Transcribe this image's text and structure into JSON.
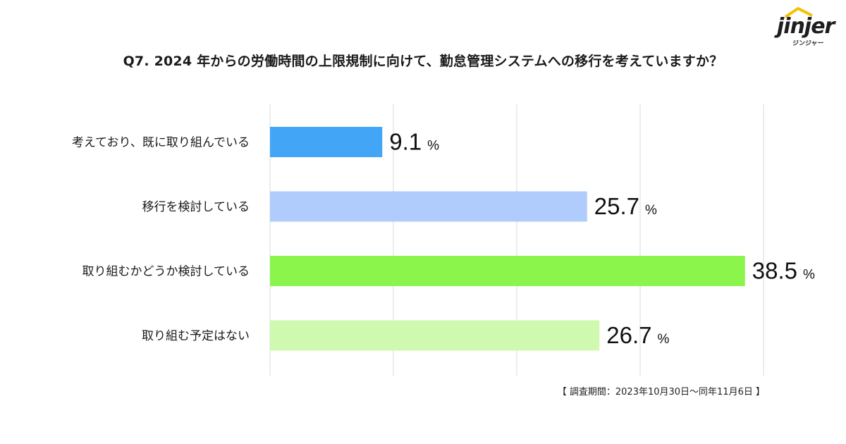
{
  "title": "Q7. 2024 年からの労働時間の上限規制に向けて、勤怠管理システムへの移行を考えていますか？",
  "logo": {
    "word": "jinjer",
    "sub": "ジンジャー"
  },
  "note": "【 調査期間：2023年10月30日～同年11月6日 】",
  "chart_data": {
    "type": "bar",
    "orientation": "horizontal",
    "categories": [
      "考えており、既に取り組んでいる",
      "移行を検討している",
      "取り組むかどうか検討している",
      "取り組む予定はない"
    ],
    "values": [
      9.1,
      25.7,
      38.5,
      26.7
    ],
    "value_suffix": "%",
    "colors": [
      "#42a5f5",
      "#b0ccfc",
      "#8cf54b",
      "#cff9af"
    ],
    "xlim": [
      0,
      40
    ],
    "grid": true
  }
}
